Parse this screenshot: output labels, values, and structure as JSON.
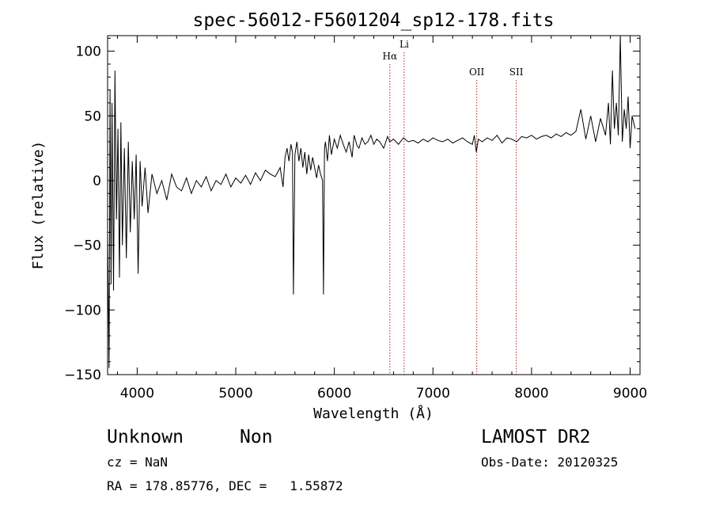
{
  "chart_data": {
    "type": "line",
    "title": "spec-56012-F5601204_sp12-178.fits",
    "xlabel": "Wavelength (Å)",
    "ylabel": "Flux (relative)",
    "xlim": [
      3700,
      9100
    ],
    "ylim": [
      -150,
      112
    ],
    "x_ticks": [
      "4000",
      "5000",
      "6000",
      "7000",
      "8000",
      "9000"
    ],
    "x_tick_values": [
      4000,
      5000,
      6000,
      7000,
      8000,
      9000
    ],
    "y_ticks": [
      "−150",
      "−100",
      "−50",
      "0",
      "50",
      "100"
    ],
    "y_tick_values": [
      -150,
      -100,
      -50,
      0,
      50,
      100
    ],
    "grid": false,
    "line_color": "#000000",
    "line_marker_color": "#b22222",
    "lines": [
      {
        "label": "Hα",
        "x": 6563
      },
      {
        "label": "Li",
        "x": 6708
      },
      {
        "label": "OII",
        "x": 7444
      },
      {
        "label": "SII",
        "x": 7845
      }
    ],
    "series": [
      {
        "x": [
          3700,
          3715,
          3725,
          3735,
          3745,
          3760,
          3775,
          3790,
          3805,
          3820,
          3835,
          3850,
          3870,
          3890,
          3910,
          3930,
          3950,
          3970,
          3990,
          4010,
          4030,
          4050,
          4080,
          4110,
          4150,
          4200,
          4250,
          4300,
          4350,
          4400,
          4450,
          4500,
          4550,
          4600,
          4650,
          4700,
          4750,
          4800,
          4850,
          4900,
          4950,
          5000,
          5050,
          5100,
          5150,
          5200,
          5250,
          5300,
          5350,
          5400,
          5450,
          5480,
          5500,
          5520,
          5540,
          5560,
          5575,
          5585,
          5600,
          5620,
          5640,
          5660,
          5680,
          5700,
          5720,
          5740,
          5760,
          5780,
          5800,
          5820,
          5840,
          5860,
          5880,
          5890,
          5900,
          5910,
          5930,
          5950,
          5970,
          6000,
          6030,
          6060,
          6090,
          6120,
          6150,
          6180,
          6200,
          6230,
          6250,
          6280,
          6310,
          6340,
          6370,
          6400,
          6430,
          6460,
          6500,
          6540,
          6563,
          6600,
          6650,
          6700,
          6750,
          6800,
          6850,
          6900,
          6950,
          7000,
          7050,
          7100,
          7150,
          7200,
          7250,
          7300,
          7350,
          7400,
          7420,
          7440,
          7460,
          7500,
          7550,
          7600,
          7650,
          7700,
          7750,
          7800,
          7850,
          7900,
          7950,
          8000,
          8050,
          8100,
          8150,
          8200,
          8250,
          8300,
          8350,
          8400,
          8450,
          8500,
          8550,
          8600,
          8650,
          8700,
          8750,
          8780,
          8800,
          8820,
          8840,
          8860,
          8880,
          8900,
          8920,
          8940,
          8960,
          8980,
          9000,
          9020,
          9050
        ],
        "values": [
          -40,
          -145,
          70,
          -80,
          60,
          -85,
          85,
          -30,
          40,
          -75,
          45,
          -50,
          25,
          -60,
          30,
          -40,
          15,
          -30,
          20,
          -72,
          15,
          -20,
          10,
          -25,
          5,
          -10,
          0,
          -15,
          5,
          -5,
          -8,
          2,
          -10,
          0,
          -5,
          3,
          -8,
          0,
          -3,
          5,
          -5,
          2,
          -2,
          4,
          -3,
          6,
          0,
          8,
          5,
          3,
          10,
          -5,
          18,
          25,
          15,
          28,
          22,
          -88,
          20,
          30,
          15,
          25,
          10,
          22,
          5,
          20,
          8,
          18,
          10,
          2,
          12,
          5,
          0,
          -88,
          25,
          30,
          15,
          35,
          20,
          32,
          25,
          35,
          28,
          22,
          30,
          18,
          35,
          27,
          25,
          33,
          28,
          30,
          35,
          28,
          32,
          30,
          25,
          34,
          30,
          32,
          28,
          33,
          30,
          31,
          29,
          32,
          30,
          33,
          31,
          30,
          32,
          29,
          31,
          33,
          30,
          28,
          35,
          22,
          32,
          30,
          33,
          31,
          35,
          29,
          33,
          32,
          30,
          34,
          33,
          35,
          32,
          34,
          35,
          33,
          36,
          34,
          37,
          35,
          38,
          55,
          32,
          50,
          30,
          48,
          35,
          60,
          28,
          85,
          40,
          60,
          35,
          112,
          30,
          55,
          40,
          65,
          25,
          50,
          40
        ]
      }
    ]
  },
  "info": {
    "object_class": "Unknown",
    "object_subclass": "Non",
    "survey": "LAMOST DR2",
    "cz": "cz = NaN",
    "obs_date": "Obs-Date: 20120325",
    "coords": "RA = 178.85776, DEC =   1.55872"
  }
}
